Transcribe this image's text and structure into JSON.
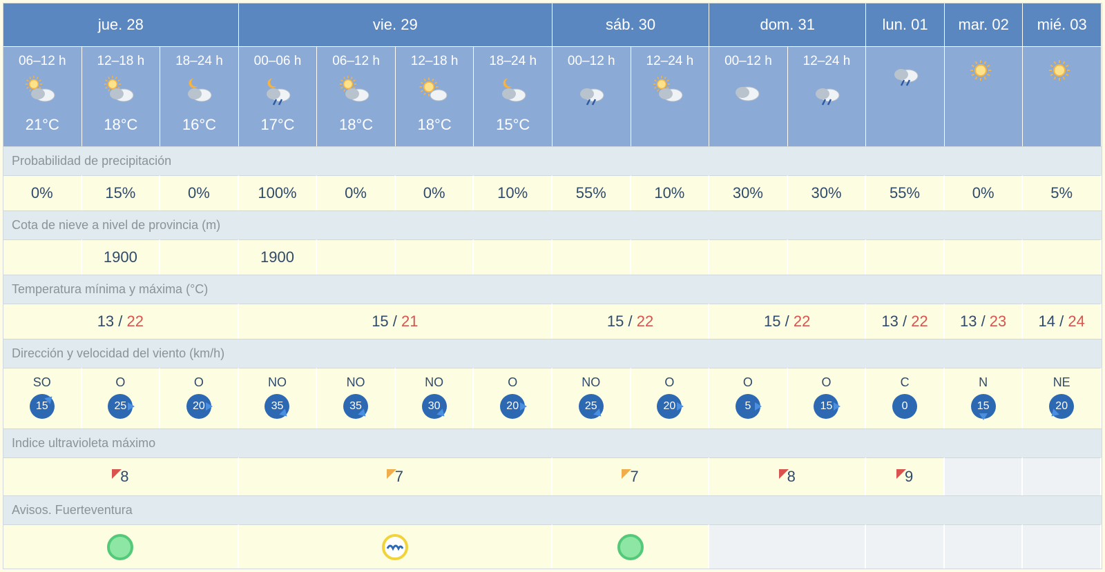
{
  "labels": {
    "precip": "Probabilidad de precipitación",
    "snow": "Cota de nieve a nivel de provincia (m)",
    "minmax": "Temperatura mínima y máxima (°C)",
    "wind": "Dirección y velocidad del viento (km/h)",
    "uv": "Indice ultravioleta máximo",
    "warnings": "Avisos. Fuerteventura"
  },
  "colors": {
    "day_header_bg": "#5a87c0",
    "period_bg": "#8caad6",
    "section_bg": "#e1ebef",
    "value_bg": "#fdfde2",
    "text_blue": "#2f4a6b",
    "text_red": "#d9534f",
    "wind_badge": "#2d68b2",
    "uv_red": "#d9534f",
    "uv_orange": "#f0ad4e",
    "warn_green_fill": "#8ee6a5",
    "warn_green_ring": "#55c97a",
    "warn_yellow_ring": "#f0d43a",
    "warn_wave": "#2d68b2"
  },
  "days": [
    {
      "label": "jue. 28",
      "span": 3,
      "periods": [
        {
          "hours": "06–12 h",
          "temp": "21°C",
          "icon": "partly-sunny"
        },
        {
          "hours": "12–18 h",
          "temp": "18°C",
          "icon": "partly-sunny"
        },
        {
          "hours": "18–24 h",
          "temp": "16°C",
          "icon": "night-cloud"
        }
      ],
      "min": "13",
      "max": "22",
      "uv": {
        "value": "8",
        "color": "#d9534f"
      },
      "warning": "green"
    },
    {
      "label": "vie. 29",
      "span": 4,
      "periods": [
        {
          "hours": "00–06 h",
          "temp": "17°C",
          "icon": "night-rain"
        },
        {
          "hours": "06–12 h",
          "temp": "18°C",
          "icon": "partly-sunny"
        },
        {
          "hours": "12–18 h",
          "temp": "18°C",
          "icon": "mostly-sunny"
        },
        {
          "hours": "18–24 h",
          "temp": "15°C",
          "icon": "night-cloud"
        }
      ],
      "min": "15",
      "max": "21",
      "uv": {
        "value": "7",
        "color": "#f0ad4e"
      },
      "warning": "yellow-wave"
    },
    {
      "label": "sáb. 30",
      "span": 2,
      "periods": [
        {
          "hours": "00–12 h",
          "temp": "",
          "icon": "cloud-rain"
        },
        {
          "hours": "12–24 h",
          "temp": "",
          "icon": "partly-sunny"
        }
      ],
      "min": "15",
      "max": "22",
      "uv": {
        "value": "7",
        "color": "#f0ad4e"
      },
      "warning": "green"
    },
    {
      "label": "dom. 31",
      "span": 2,
      "periods": [
        {
          "hours": "00–12 h",
          "temp": "",
          "icon": "cloudy"
        },
        {
          "hours": "12–24 h",
          "temp": "",
          "icon": "cloud-rain"
        }
      ],
      "min": "15",
      "max": "22",
      "uv": {
        "value": "8",
        "color": "#d9534f"
      },
      "warning": "none"
    },
    {
      "label": "lun. 01",
      "span": 1,
      "periods": [
        {
          "hours": "",
          "temp": "",
          "icon": "cloud-rain"
        }
      ],
      "min": "13",
      "max": "22",
      "uv": {
        "value": "9",
        "color": "#d9534f"
      },
      "warning": "none"
    },
    {
      "label": "mar. 02",
      "span": 1,
      "periods": [
        {
          "hours": "",
          "temp": "",
          "icon": "sunny"
        }
      ],
      "min": "13",
      "max": "23",
      "uv": null,
      "warning": "none"
    },
    {
      "label": "mié. 03",
      "span": 1,
      "periods": [
        {
          "hours": "",
          "temp": "",
          "icon": "sunny"
        }
      ],
      "min": "14",
      "max": "24",
      "uv": null,
      "warning": "none"
    }
  ],
  "precip": [
    "0%",
    "15%",
    "0%",
    "100%",
    "0%",
    "0%",
    "10%",
    "55%",
    "10%",
    "30%",
    "30%",
    "55%",
    "0%",
    "5%"
  ],
  "snow": [
    "",
    "1900",
    "",
    "1900",
    "",
    "",
    "",
    "",
    "",
    "",
    "",
    "",
    "",
    ""
  ],
  "wind": [
    {
      "dir": "SO",
      "speed": "15",
      "angle": 45
    },
    {
      "dir": "O",
      "speed": "25",
      "angle": 90
    },
    {
      "dir": "O",
      "speed": "20",
      "angle": 90
    },
    {
      "dir": "NO",
      "speed": "35",
      "angle": 135
    },
    {
      "dir": "NO",
      "speed": "35",
      "angle": 135
    },
    {
      "dir": "NO",
      "speed": "30",
      "angle": 135
    },
    {
      "dir": "O",
      "speed": "20",
      "angle": 90
    },
    {
      "dir": "NO",
      "speed": "25",
      "angle": 135
    },
    {
      "dir": "O",
      "speed": "20",
      "angle": 90
    },
    {
      "dir": "O",
      "speed": "5",
      "angle": 90
    },
    {
      "dir": "O",
      "speed": "15",
      "angle": 90
    },
    {
      "dir": "C",
      "speed": "0",
      "angle": null
    },
    {
      "dir": "N",
      "speed": "15",
      "angle": 180
    },
    {
      "dir": "NE",
      "speed": "20",
      "angle": 225
    }
  ]
}
